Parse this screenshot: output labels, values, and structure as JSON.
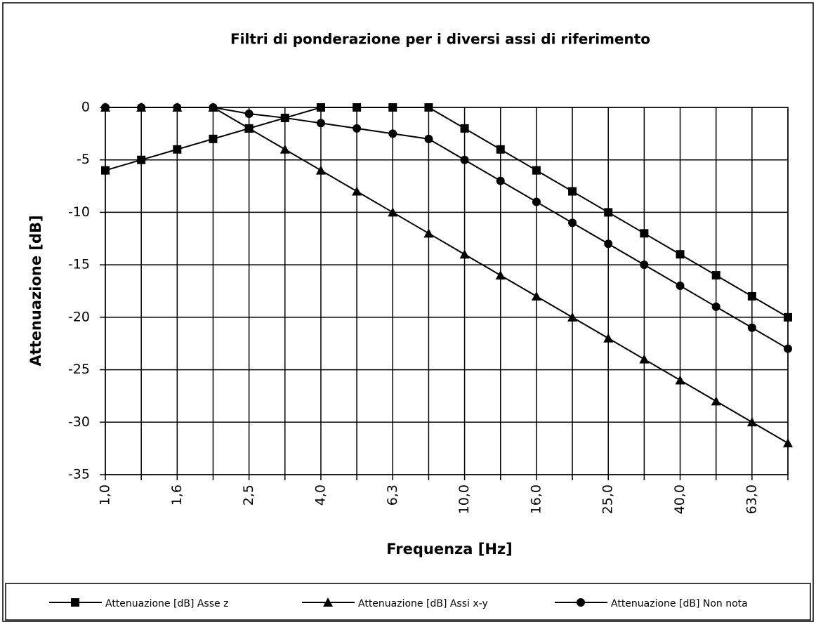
{
  "chart_data": {
    "type": "line",
    "title": "Filtri di ponderazione per i diversi assi di riferimento",
    "x_label": "Frequenza [Hz]",
    "y_label": "Attenuazione [dB]",
    "categories": [
      "1,0",
      null,
      "1,6",
      null,
      "2,5",
      null,
      "4,0",
      null,
      "6,3",
      null,
      "10,0",
      null,
      "16,0",
      null,
      "25,0",
      null,
      "40,0",
      null,
      "63,0",
      null
    ],
    "series": [
      {
        "name": "Attenuazione [dB] Asse z",
        "color": "#000000",
        "marker": "square",
        "values": [
          -6,
          -5,
          -4,
          -3,
          -2,
          -1,
          0,
          0,
          0,
          0,
          -2,
          -4,
          -6,
          -8,
          -10,
          -12,
          -14,
          -16,
          -18,
          -20
        ]
      },
      {
        "name": "Attenuazione [dB] Assi x-y",
        "color": "#000000",
        "marker": "triangle",
        "values": [
          0,
          0,
          0,
          0,
          -2,
          -4,
          -6,
          -8,
          -10,
          -12,
          -14,
          -16,
          -18,
          -20,
          -22,
          -24,
          -26,
          -28,
          -30,
          -32
        ]
      },
      {
        "name": "Attenuazione [dB] Non nota",
        "color": "#000000",
        "marker": "circle",
        "values": [
          0,
          0,
          0,
          0,
          -0.6,
          -1,
          -1.5,
          -2,
          -2.5,
          -3,
          -5,
          -7,
          -9,
          -11,
          -13,
          -15,
          -17,
          -19,
          -21,
          -23
        ]
      }
    ],
    "ylim": [
      -35,
      0
    ],
    "yticks": [
      0,
      -5,
      -10,
      -15,
      -20,
      -25,
      -30,
      -35
    ],
    "grid": true,
    "legend": "bottom"
  }
}
